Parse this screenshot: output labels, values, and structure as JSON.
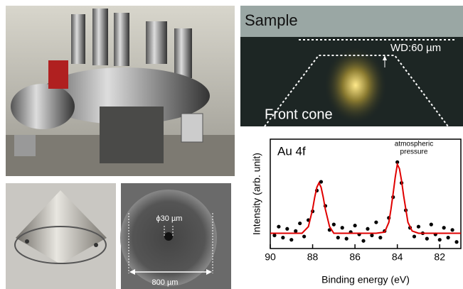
{
  "chart_data": {
    "type": "scatter",
    "title": "Au 4f",
    "annotation_lines": [
      "atmospheric",
      "pressure"
    ],
    "xlabel": "Binding energy (eV)",
    "ylabel": "Intensity (arb. unit)",
    "xlim": [
      90,
      81
    ],
    "xticks": [
      90,
      88,
      86,
      84,
      82
    ],
    "ylim": [
      0,
      10
    ],
    "series": [
      {
        "type": "scatter",
        "color": "#000000",
        "x": [
          89.8,
          89.6,
          89.4,
          89.2,
          89.0,
          88.8,
          88.6,
          88.4,
          88.2,
          88.0,
          87.8,
          87.6,
          87.4,
          87.2,
          87.0,
          86.8,
          86.6,
          86.4,
          86.2,
          86.0,
          85.8,
          85.6,
          85.4,
          85.2,
          85.0,
          84.8,
          84.6,
          84.4,
          84.2,
          84.0,
          83.8,
          83.6,
          83.4,
          83.2,
          83.0,
          82.8,
          82.6,
          82.4,
          82.2,
          82.0,
          81.8,
          81.6,
          81.4,
          81.2
        ],
        "values": [
          1.2,
          2.0,
          1.0,
          1.8,
          0.8,
          1.6,
          2.3,
          1.1,
          2.6,
          3.4,
          5.3,
          6.1,
          3.9,
          1.7,
          2.2,
          1.0,
          1.9,
          0.9,
          1.5,
          2.1,
          1.3,
          0.7,
          1.8,
          1.2,
          2.4,
          1.0,
          1.6,
          2.8,
          4.7,
          7.9,
          6.0,
          3.5,
          1.9,
          1.1,
          2.0,
          1.4,
          0.9,
          2.2,
          1.3,
          0.8,
          1.9,
          1.0,
          1.7,
          0.6
        ]
      },
      {
        "type": "line",
        "color": "#e00000",
        "x": [
          90,
          89.5,
          89,
          88.5,
          88.2,
          88,
          87.9,
          87.8,
          87.7,
          87.6,
          87.5,
          87.4,
          87.2,
          87,
          86.5,
          86,
          85.5,
          85,
          84.6,
          84.4,
          84.3,
          84.2,
          84.1,
          84.0,
          83.9,
          83.8,
          83.7,
          83.5,
          83.3,
          83,
          82.5,
          82,
          81.5,
          81
        ],
        "values": [
          1.4,
          1.4,
          1.4,
          1.4,
          2.0,
          3.6,
          4.7,
          5.6,
          6.0,
          5.6,
          4.7,
          3.6,
          2.0,
          1.4,
          1.4,
          1.4,
          1.4,
          1.4,
          1.5,
          2.4,
          3.6,
          5.0,
          6.5,
          7.7,
          7.3,
          6.2,
          4.8,
          2.4,
          1.6,
          1.4,
          1.4,
          1.4,
          1.4,
          1.4
        ]
      }
    ]
  },
  "microscope": {
    "sample": "Sample",
    "working_distance": "WD:60 µm",
    "cone": "Front cone"
  },
  "sem": {
    "hole": "ϕ30 µm",
    "aperture": "800 µm"
  }
}
